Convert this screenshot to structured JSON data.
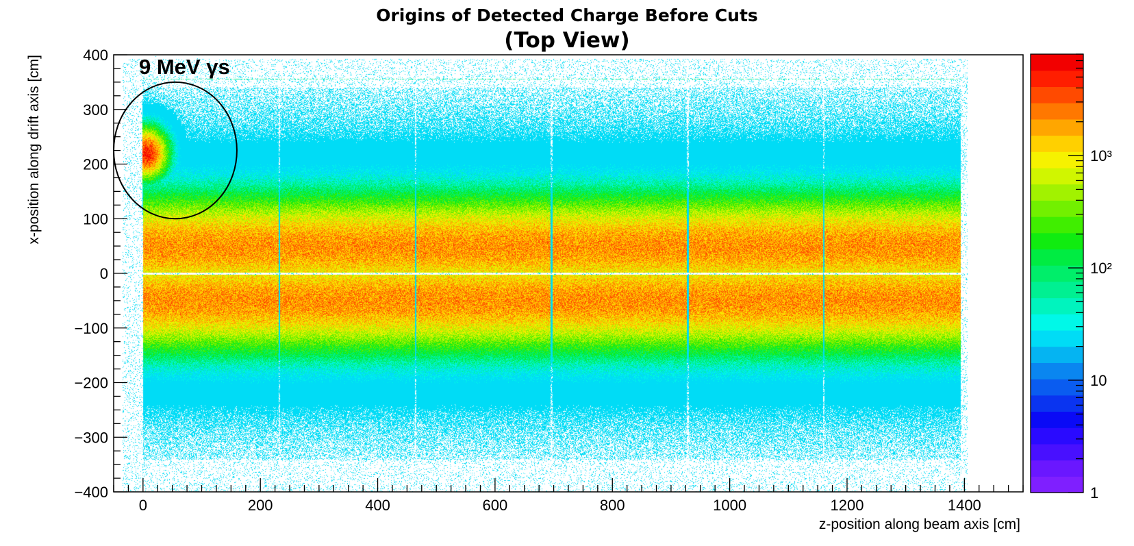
{
  "chart_data": {
    "type": "heatmap",
    "title": "Origins of Detected Charge Before Cuts",
    "subtitle": "(Top View)",
    "xlabel": "z-position along beam axis  [cm]",
    "ylabel": "x-position along drift axis  [cm]",
    "xlim": [
      -50,
      1500
    ],
    "ylim": [
      -400,
      400
    ],
    "x_ticks": [
      0,
      200,
      400,
      600,
      800,
      1000,
      1200,
      1400
    ],
    "x_tick_labels": [
      "0",
      "200",
      "400",
      "600",
      "800",
      "1000",
      "1200",
      "1400"
    ],
    "y_ticks": [
      -400,
      -300,
      -200,
      -100,
      0,
      100,
      200,
      300,
      400
    ],
    "y_tick_labels": [
      "−400",
      "−300",
      "−200",
      "−100",
      "0",
      "100",
      "200",
      "300",
      "400"
    ],
    "colorbar": {
      "scale": "log",
      "range": [
        1,
        8000
      ],
      "ticks": [
        1,
        10,
        100,
        1000
      ],
      "tick_labels": [
        "1",
        "10",
        "10²",
        "10³"
      ],
      "palette": [
        "#7f1fff",
        "#6a17ff",
        "#4810ff",
        "#2a0aff",
        "#0a0af6",
        "#0a34f0",
        "#0a5cf0",
        "#0a86f0",
        "#05b4f2",
        "#00dcf6",
        "#00f8e8",
        "#00f4be",
        "#00f092",
        "#00ee6a",
        "#00ec42",
        "#10ec10",
        "#40ee00",
        "#72f000",
        "#a2f200",
        "#d0f600",
        "#f6f200",
        "#ffd000",
        "#ffa600",
        "#ff7800",
        "#ff4a00",
        "#ff1e00",
        "#f20000"
      ]
    },
    "annotation": "9 MeV  γs",
    "detector_extent": {
      "z": [
        0,
        1393
      ],
      "x": [
        -355,
        355
      ]
    },
    "dead_gaps_z": [
      232,
      464,
      696,
      928,
      1160
    ],
    "cathode_gap_x": 0,
    "hotspot": {
      "z": 5,
      "x": 220
    },
    "circle": {
      "center_z": 55,
      "center_x": 225,
      "radius_z": 105,
      "radius_x": 125
    }
  }
}
